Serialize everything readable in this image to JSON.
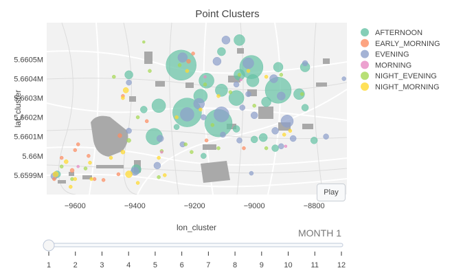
{
  "chart_data": {
    "type": "scatter",
    "title": "Point Clusters",
    "xlabel": "lon_cluster",
    "ylabel": "lat_cluster",
    "xlim": [
      -9695,
      -8690
    ],
    "ylim": [
      5659800,
      5660690
    ],
    "x_ticks": [
      -9600,
      -9400,
      -9200,
      -9000,
      -8800
    ],
    "x_tick_labels": [
      "−9600",
      "−9400",
      "−9200",
      "−9000",
      "−8800"
    ],
    "y_ticks": [
      5659900,
      5660000,
      5660100,
      5660200,
      5660300,
      5660400,
      5660500
    ],
    "y_tick_labels": [
      "5.6599M",
      "5.66M",
      "5.6601M",
      "5.6602M",
      "5.6603M",
      "5.6604M",
      "5.6605M"
    ],
    "legend_position": "right",
    "background": "map",
    "series": [
      {
        "name": "AFTERNOON",
        "color": "#66c2a5",
        "points": [
          {
            "x": -9245,
            "y": 5660470,
            "size": 44
          },
          {
            "x": -9225,
            "y": 5660225,
            "size": 42
          },
          {
            "x": -9120,
            "y": 5660170,
            "size": 40
          },
          {
            "x": -8920,
            "y": 5660340,
            "size": 38
          },
          {
            "x": -9010,
            "y": 5660460,
            "size": 34
          },
          {
            "x": -9320,
            "y": 5660260,
            "size": 20
          },
          {
            "x": -9335,
            "y": 5660100,
            "size": 24
          },
          {
            "x": -9060,
            "y": 5660300,
            "size": 22
          },
          {
            "x": -9005,
            "y": 5660390,
            "size": 18
          },
          {
            "x": -9160,
            "y": 5660390,
            "size": 22
          },
          {
            "x": -9110,
            "y": 5660340,
            "size": 18
          },
          {
            "x": -9180,
            "y": 5660310,
            "size": 20
          },
          {
            "x": -9050,
            "y": 5660420,
            "size": 16
          },
          {
            "x": -8830,
            "y": 5660460,
            "size": 14
          },
          {
            "x": -8850,
            "y": 5660320,
            "size": 16
          },
          {
            "x": -8920,
            "y": 5660460,
            "size": 14
          },
          {
            "x": -8960,
            "y": 5660280,
            "size": 14
          },
          {
            "x": -9110,
            "y": 5660540,
            "size": 12
          },
          {
            "x": -9050,
            "y": 5660600,
            "size": 16
          },
          {
            "x": -9395,
            "y": 5659930,
            "size": 14
          },
          {
            "x": -8970,
            "y": 5660095,
            "size": 12
          },
          {
            "x": -9000,
            "y": 5660085,
            "size": 10
          },
          {
            "x": -9060,
            "y": 5660140,
            "size": 10
          },
          {
            "x": -8800,
            "y": 5660080,
            "size": 10
          },
          {
            "x": -9420,
            "y": 5660420,
            "size": 12
          },
          {
            "x": -9370,
            "y": 5660240,
            "size": 10
          },
          {
            "x": -8830,
            "y": 5660250,
            "size": 10
          },
          {
            "x": -8930,
            "y": 5660040,
            "size": 10
          },
          {
            "x": -9170,
            "y": 5660000,
            "size": 8
          },
          {
            "x": -9660,
            "y": 5659905,
            "size": 10
          },
          {
            "x": -9260,
            "y": 5660150,
            "size": 8
          }
        ]
      },
      {
        "name": "EARLY_MORNING",
        "color": "#fc8d62",
        "points": [
          {
            "x": -9590,
            "y": 5660060,
            "size": 5
          },
          {
            "x": -9600,
            "y": 5660030,
            "size": 5
          },
          {
            "x": -9450,
            "y": 5660105,
            "size": 6
          },
          {
            "x": -9645,
            "y": 5659990,
            "size": 5
          },
          {
            "x": -9610,
            "y": 5659925,
            "size": 6
          },
          {
            "x": -9535,
            "y": 5659880,
            "size": 5
          },
          {
            "x": -9505,
            "y": 5659875,
            "size": 5
          },
          {
            "x": -9220,
            "y": 5660490,
            "size": 6
          },
          {
            "x": -9035,
            "y": 5660040,
            "size": 5
          },
          {
            "x": -9160,
            "y": 5660080,
            "size": 5
          },
          {
            "x": -9440,
            "y": 5660310,
            "size": 5
          },
          {
            "x": -9360,
            "y": 5660180,
            "size": 5
          },
          {
            "x": -9205,
            "y": 5660530,
            "size": 5
          },
          {
            "x": -9455,
            "y": 5659905,
            "size": 5
          },
          {
            "x": -9670,
            "y": 5659880,
            "size": 5
          },
          {
            "x": -9555,
            "y": 5660000,
            "size": 5
          }
        ]
      },
      {
        "name": "EVENING",
        "color": "#8da0cb",
        "points": [
          {
            "x": -9225,
            "y": 5660215,
            "size": 20
          },
          {
            "x": -9110,
            "y": 5660215,
            "size": 22
          },
          {
            "x": -9020,
            "y": 5660480,
            "size": 16
          },
          {
            "x": -8890,
            "y": 5660180,
            "size": 18
          },
          {
            "x": -9185,
            "y": 5660270,
            "size": 16
          },
          {
            "x": -9240,
            "y": 5660510,
            "size": 14
          },
          {
            "x": -9095,
            "y": 5660600,
            "size": 12
          },
          {
            "x": -8910,
            "y": 5660310,
            "size": 12
          },
          {
            "x": -9125,
            "y": 5660490,
            "size": 12
          },
          {
            "x": -9000,
            "y": 5660210,
            "size": 10
          },
          {
            "x": -8935,
            "y": 5660400,
            "size": 12
          },
          {
            "x": -9400,
            "y": 5659920,
            "size": 12
          },
          {
            "x": -9315,
            "y": 5660090,
            "size": 10
          },
          {
            "x": -9325,
            "y": 5659950,
            "size": 10
          },
          {
            "x": -8830,
            "y": 5660480,
            "size": 8
          },
          {
            "x": -8760,
            "y": 5660100,
            "size": 8
          },
          {
            "x": -9020,
            "y": 5660320,
            "size": 8
          },
          {
            "x": -8930,
            "y": 5660130,
            "size": 10
          },
          {
            "x": -9670,
            "y": 5659895,
            "size": 10
          },
          {
            "x": -9420,
            "y": 5660130,
            "size": 8
          },
          {
            "x": -9105,
            "y": 5660110,
            "size": 8
          },
          {
            "x": -8870,
            "y": 5660090,
            "size": 9
          },
          {
            "x": -9050,
            "y": 5660080,
            "size": 8
          },
          {
            "x": -9420,
            "y": 5660380,
            "size": 8
          },
          {
            "x": -8700,
            "y": 5660400,
            "size": 6
          },
          {
            "x": -9240,
            "y": 5660060,
            "size": 8
          },
          {
            "x": -9040,
            "y": 5660250,
            "size": 8
          },
          {
            "x": -8910,
            "y": 5660050,
            "size": 8
          },
          {
            "x": -9010,
            "y": 5659910,
            "size": 6
          },
          {
            "x": -9060,
            "y": 5660370,
            "size": 8
          },
          {
            "x": -9170,
            "y": 5660200,
            "size": 8
          }
        ]
      },
      {
        "name": "MORNING",
        "color": "#e78ac3",
        "points": [
          {
            "x": -8895,
            "y": 5660050,
            "size": 4
          },
          {
            "x": -9310,
            "y": 5660020,
            "size": 4
          },
          {
            "x": -9590,
            "y": 5659945,
            "size": 4
          },
          {
            "x": -9045,
            "y": 5660395,
            "size": 4
          },
          {
            "x": -9165,
            "y": 5660410,
            "size": 4
          }
        ]
      },
      {
        "name": "NIGHT_EVENING",
        "color": "#a6d854",
        "points": [
          {
            "x": -9420,
            "y": 5660080,
            "size": 6
          },
          {
            "x": -9310,
            "y": 5660025,
            "size": 5
          },
          {
            "x": -9210,
            "y": 5660020,
            "size": 5
          },
          {
            "x": -9120,
            "y": 5660040,
            "size": 5
          },
          {
            "x": -8960,
            "y": 5660040,
            "size": 5
          },
          {
            "x": -9645,
            "y": 5659945,
            "size": 5
          },
          {
            "x": -9565,
            "y": 5659935,
            "size": 5
          },
          {
            "x": -9250,
            "y": 5660470,
            "size": 5
          },
          {
            "x": -9165,
            "y": 5660370,
            "size": 5
          },
          {
            "x": -9080,
            "y": 5660330,
            "size": 5
          },
          {
            "x": -9050,
            "y": 5660420,
            "size": 5
          },
          {
            "x": -9000,
            "y": 5660260,
            "size": 5
          },
          {
            "x": -8910,
            "y": 5660420,
            "size": 5
          },
          {
            "x": -8840,
            "y": 5660320,
            "size": 5
          },
          {
            "x": -9390,
            "y": 5660200,
            "size": 5
          },
          {
            "x": -9350,
            "y": 5660440,
            "size": 5
          },
          {
            "x": -9470,
            "y": 5660410,
            "size": 5
          },
          {
            "x": -9610,
            "y": 5659880,
            "size": 5
          },
          {
            "x": -9140,
            "y": 5660160,
            "size": 5
          },
          {
            "x": -9320,
            "y": 5659890,
            "size": 5
          },
          {
            "x": -9230,
            "y": 5660060,
            "size": 5
          },
          {
            "x": -9370,
            "y": 5660590,
            "size": 4
          }
        ]
      },
      {
        "name": "NIGHT_MORNING",
        "color": "#ffd92f",
        "points": [
          {
            "x": -9420,
            "y": 5659905,
            "size": 10
          },
          {
            "x": -9665,
            "y": 5659905,
            "size": 8
          },
          {
            "x": -9630,
            "y": 5659970,
            "size": 6
          },
          {
            "x": -9430,
            "y": 5660340,
            "size": 8
          },
          {
            "x": -9600,
            "y": 5659880,
            "size": 5
          },
          {
            "x": -9550,
            "y": 5659965,
            "size": 5
          },
          {
            "x": -9480,
            "y": 5659990,
            "size": 5
          },
          {
            "x": -9440,
            "y": 5660020,
            "size": 6
          },
          {
            "x": -9300,
            "y": 5659900,
            "size": 5
          },
          {
            "x": -9320,
            "y": 5659990,
            "size": 5
          },
          {
            "x": -9390,
            "y": 5659860,
            "size": 5
          },
          {
            "x": -9615,
            "y": 5659840,
            "size": 5
          },
          {
            "x": -9440,
            "y": 5660300,
            "size": 5
          },
          {
            "x": -9225,
            "y": 5660440,
            "size": 5
          },
          {
            "x": -8900,
            "y": 5660110,
            "size": 5
          },
          {
            "x": -9020,
            "y": 5660440,
            "size": 5
          },
          {
            "x": -8960,
            "y": 5660410,
            "size": 5
          },
          {
            "x": -9260,
            "y": 5660200,
            "size": 5
          },
          {
            "x": -8880,
            "y": 5660130,
            "size": 5
          },
          {
            "x": -9180,
            "y": 5660240,
            "size": 5
          },
          {
            "x": -9120,
            "y": 5660310,
            "size": 5
          },
          {
            "x": -9545,
            "y": 5659880,
            "size": 5
          }
        ]
      }
    ],
    "slider": {
      "current_label": "MONTH 1",
      "steps": [
        "1",
        "2",
        "3",
        "4",
        "5",
        "6",
        "7",
        "8",
        "9",
        "10",
        "11",
        "12"
      ],
      "active_index": 0
    }
  },
  "controls": {
    "play_label": "Play"
  }
}
